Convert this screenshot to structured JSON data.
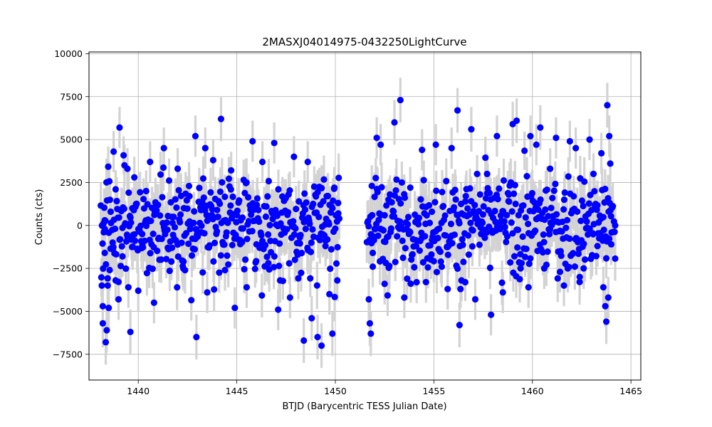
{
  "chart_data": {
    "type": "scatter",
    "title": "2MASXJ04014975-0432250LightCurve",
    "xlabel": "BTJD (Barycentric TESS Julian Date)",
    "ylabel": "Counts (cts)",
    "xlim": [
      1437.5,
      1465.5
    ],
    "ylim": [
      -9000,
      10100
    ],
    "x_ticks": [
      1440,
      1445,
      1450,
      1455,
      1460,
      1465
    ],
    "x_tick_labels": [
      "1440",
      "1445",
      "1450",
      "1455",
      "1460",
      "1465"
    ],
    "y_ticks": [
      -7500,
      -5000,
      -2500,
      0,
      2500,
      5000,
      7500,
      10000
    ],
    "y_tick_labels": [
      "−7500",
      "−5000",
      "−2500",
      "0",
      "2500",
      "5000",
      "7500",
      "10000"
    ],
    "grid": true,
    "marker_color": "#0000ff",
    "errorbar_color": "#d3d3d3",
    "segments": [
      {
        "x_start": 1438.1,
        "x_end": 1450.2,
        "typical_spread": 2600,
        "typical_error": 1200
      },
      {
        "x_start": 1451.6,
        "x_end": 1464.2,
        "typical_spread": 2500,
        "typical_error": 1200
      }
    ],
    "points": [
      {
        "x": 1438.15,
        "y": -3500,
        "err": 1200
      },
      {
        "x": 1438.2,
        "y": -4700,
        "err": 1300
      },
      {
        "x": 1438.2,
        "y": -5700,
        "err": 1400
      },
      {
        "x": 1438.25,
        "y": -400,
        "err": 1200
      },
      {
        "x": 1438.3,
        "y": -1600,
        "err": 1200
      },
      {
        "x": 1438.3,
        "y": 300,
        "err": 1200
      },
      {
        "x": 1438.35,
        "y": -6800,
        "err": 1300
      },
      {
        "x": 1438.4,
        "y": -6100,
        "err": 1300
      },
      {
        "x": 1438.45,
        "y": -3500,
        "err": 1200
      },
      {
        "x": 1438.5,
        "y": -4800,
        "err": 1200
      },
      {
        "x": 1438.55,
        "y": -2600,
        "err": 1200
      },
      {
        "x": 1438.6,
        "y": 800,
        "err": 1200
      },
      {
        "x": 1438.7,
        "y": -1000,
        "err": 1200
      },
      {
        "x": 1438.75,
        "y": 4300,
        "err": 1200
      },
      {
        "x": 1438.85,
        "y": -3200,
        "err": 1200
      },
      {
        "x": 1439.0,
        "y": -4300,
        "err": 1200
      },
      {
        "x": 1439.05,
        "y": 5700,
        "err": 1200
      },
      {
        "x": 1439.2,
        "y": -1800,
        "err": 1200
      },
      {
        "x": 1439.3,
        "y": 3500,
        "err": 1200
      },
      {
        "x": 1439.45,
        "y": 3300,
        "err": 1200
      },
      {
        "x": 1439.5,
        "y": -3600,
        "err": 1200
      },
      {
        "x": 1439.6,
        "y": -6200,
        "err": 1300
      },
      {
        "x": 1439.7,
        "y": 1000,
        "err": 1200
      },
      {
        "x": 1439.8,
        "y": 2800,
        "err": 1200
      },
      {
        "x": 1440.0,
        "y": -3800,
        "err": 1200
      },
      {
        "x": 1440.2,
        "y": -500,
        "err": 1200
      },
      {
        "x": 1440.4,
        "y": 2000,
        "err": 1200
      },
      {
        "x": 1440.6,
        "y": 3700,
        "err": 1200
      },
      {
        "x": 1440.8,
        "y": -4500,
        "err": 1200
      },
      {
        "x": 1441.0,
        "y": 1200,
        "err": 1200
      },
      {
        "x": 1441.3,
        "y": 4500,
        "err": 1200
      },
      {
        "x": 1441.5,
        "y": -1300,
        "err": 1200
      },
      {
        "x": 1441.7,
        "y": 500,
        "err": 1200
      },
      {
        "x": 1442.0,
        "y": 3300,
        "err": 1200
      },
      {
        "x": 1442.3,
        "y": -2100,
        "err": 1200
      },
      {
        "x": 1442.6,
        "y": 1700,
        "err": 1200
      },
      {
        "x": 1442.9,
        "y": 5200,
        "err": 1200
      },
      {
        "x": 1442.95,
        "y": -6500,
        "err": 1300
      },
      {
        "x": 1443.2,
        "y": -400,
        "err": 1200
      },
      {
        "x": 1443.4,
        "y": 4500,
        "err": 1200
      },
      {
        "x": 1443.5,
        "y": -3900,
        "err": 1200
      },
      {
        "x": 1443.8,
        "y": 3800,
        "err": 1200
      },
      {
        "x": 1444.0,
        "y": 900,
        "err": 1200
      },
      {
        "x": 1444.2,
        "y": 6200,
        "err": 1300
      },
      {
        "x": 1444.4,
        "y": -2600,
        "err": 1200
      },
      {
        "x": 1444.7,
        "y": 2100,
        "err": 1200
      },
      {
        "x": 1444.9,
        "y": -4800,
        "err": 1200
      },
      {
        "x": 1445.2,
        "y": 300,
        "err": 1200
      },
      {
        "x": 1445.5,
        "y": -3600,
        "err": 1200
      },
      {
        "x": 1445.8,
        "y": 4900,
        "err": 1200
      },
      {
        "x": 1446.0,
        "y": -1100,
        "err": 1200
      },
      {
        "x": 1446.3,
        "y": 3700,
        "err": 1200
      },
      {
        "x": 1446.6,
        "y": -2200,
        "err": 1200
      },
      {
        "x": 1446.9,
        "y": 4800,
        "err": 1200
      },
      {
        "x": 1447.1,
        "y": -4900,
        "err": 1200
      },
      {
        "x": 1447.4,
        "y": 1500,
        "err": 1200
      },
      {
        "x": 1447.7,
        "y": -4200,
        "err": 1200
      },
      {
        "x": 1447.9,
        "y": 4000,
        "err": 1200
      },
      {
        "x": 1448.2,
        "y": -700,
        "err": 1200
      },
      {
        "x": 1448.4,
        "y": -6700,
        "err": 1300
      },
      {
        "x": 1448.6,
        "y": 3700,
        "err": 1200
      },
      {
        "x": 1448.8,
        "y": -5400,
        "err": 1300
      },
      {
        "x": 1449.1,
        "y": -6500,
        "err": 1300
      },
      {
        "x": 1449.3,
        "y": -7000,
        "err": 1300
      },
      {
        "x": 1449.5,
        "y": -1200,
        "err": 1200
      },
      {
        "x": 1449.7,
        "y": -4000,
        "err": 1200
      },
      {
        "x": 1449.85,
        "y": -6300,
        "err": 1300
      },
      {
        "x": 1449.95,
        "y": 2200,
        "err": 1200
      },
      {
        "x": 1450.1,
        "y": -3200,
        "err": 1200
      },
      {
        "x": 1450.15,
        "y": 700,
        "err": 1200
      },
      {
        "x": 1451.7,
        "y": -4300,
        "err": 1200
      },
      {
        "x": 1451.75,
        "y": -5700,
        "err": 1300
      },
      {
        "x": 1451.8,
        "y": -6300,
        "err": 1300
      },
      {
        "x": 1451.85,
        "y": 2300,
        "err": 1200
      },
      {
        "x": 1451.9,
        "y": -2400,
        "err": 1200
      },
      {
        "x": 1452.0,
        "y": -200,
        "err": 1200
      },
      {
        "x": 1452.1,
        "y": 5100,
        "err": 1200
      },
      {
        "x": 1452.3,
        "y": 4700,
        "err": 1200
      },
      {
        "x": 1452.5,
        "y": -3400,
        "err": 1200
      },
      {
        "x": 1452.7,
        "y": 1500,
        "err": 1200
      },
      {
        "x": 1453.0,
        "y": 6000,
        "err": 1300
      },
      {
        "x": 1453.3,
        "y": 7300,
        "err": 1300
      },
      {
        "x": 1453.5,
        "y": -4200,
        "err": 1200
      },
      {
        "x": 1453.8,
        "y": 2200,
        "err": 1200
      },
      {
        "x": 1454.1,
        "y": -1200,
        "err": 1200
      },
      {
        "x": 1454.4,
        "y": 4400,
        "err": 1200
      },
      {
        "x": 1454.6,
        "y": -3300,
        "err": 1200
      },
      {
        "x": 1454.9,
        "y": 800,
        "err": 1200
      },
      {
        "x": 1455.1,
        "y": 4700,
        "err": 1200
      },
      {
        "x": 1455.4,
        "y": -2400,
        "err": 1200
      },
      {
        "x": 1455.7,
        "y": -3700,
        "err": 1200
      },
      {
        "x": 1455.9,
        "y": 4500,
        "err": 1200
      },
      {
        "x": 1456.2,
        "y": 6700,
        "err": 1300
      },
      {
        "x": 1456.3,
        "y": -5800,
        "err": 1300
      },
      {
        "x": 1456.4,
        "y": -3200,
        "err": 1200
      },
      {
        "x": 1456.6,
        "y": 1400,
        "err": 1200
      },
      {
        "x": 1456.9,
        "y": 5600,
        "err": 1300
      },
      {
        "x": 1457.1,
        "y": -4300,
        "err": 1200
      },
      {
        "x": 1457.4,
        "y": -500,
        "err": 1200
      },
      {
        "x": 1457.7,
        "y": 3000,
        "err": 1200
      },
      {
        "x": 1457.9,
        "y": -5200,
        "err": 1200
      },
      {
        "x": 1458.2,
        "y": 5200,
        "err": 1200
      },
      {
        "x": 1458.5,
        "y": -3900,
        "err": 1200
      },
      {
        "x": 1458.8,
        "y": 1800,
        "err": 1200
      },
      {
        "x": 1459.0,
        "y": 5900,
        "err": 1300
      },
      {
        "x": 1459.2,
        "y": 6100,
        "err": 1300
      },
      {
        "x": 1459.4,
        "y": -2500,
        "err": 1200
      },
      {
        "x": 1459.8,
        "y": -3600,
        "err": 1200
      },
      {
        "x": 1459.9,
        "y": 5200,
        "err": 1200
      },
      {
        "x": 1460.2,
        "y": 4700,
        "err": 1200
      },
      {
        "x": 1460.4,
        "y": 5700,
        "err": 1300
      },
      {
        "x": 1460.6,
        "y": -2500,
        "err": 1200
      },
      {
        "x": 1460.9,
        "y": 3300,
        "err": 1200
      },
      {
        "x": 1461.2,
        "y": 5100,
        "err": 1200
      },
      {
        "x": 1461.4,
        "y": -2700,
        "err": 1200
      },
      {
        "x": 1461.6,
        "y": -3500,
        "err": 1200
      },
      {
        "x": 1461.9,
        "y": 4900,
        "err": 1200
      },
      {
        "x": 1462.2,
        "y": 4500,
        "err": 1200
      },
      {
        "x": 1462.4,
        "y": -3000,
        "err": 1200
      },
      {
        "x": 1462.6,
        "y": -2500,
        "err": 1200
      },
      {
        "x": 1462.9,
        "y": 5000,
        "err": 1200
      },
      {
        "x": 1463.1,
        "y": 3000,
        "err": 1200
      },
      {
        "x": 1463.3,
        "y": -1200,
        "err": 1200
      },
      {
        "x": 1463.5,
        "y": 4200,
        "err": 1200
      },
      {
        "x": 1463.6,
        "y": -3600,
        "err": 1200
      },
      {
        "x": 1463.7,
        "y": -4700,
        "err": 1200
      },
      {
        "x": 1463.75,
        "y": -5600,
        "err": 1300
      },
      {
        "x": 1463.8,
        "y": 7000,
        "err": 1300
      },
      {
        "x": 1463.85,
        "y": -4200,
        "err": 1200
      },
      {
        "x": 1463.9,
        "y": 5200,
        "err": 1200
      },
      {
        "x": 1463.95,
        "y": 3600,
        "err": 1200
      },
      {
        "x": 1464.0,
        "y": -1100,
        "err": 1200
      },
      {
        "x": 1464.2,
        "y": 0,
        "err": 1200
      }
    ]
  }
}
